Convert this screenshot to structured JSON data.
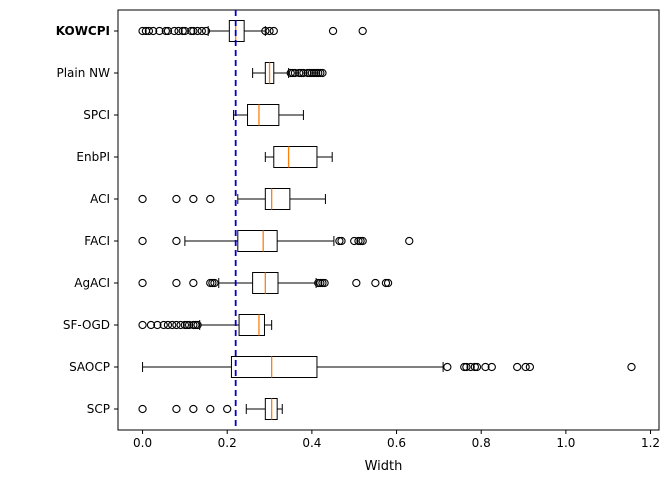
{
  "chart_data": {
    "type": "boxplot",
    "orientation": "horizontal",
    "xlabel": "Width",
    "xlim": [
      -0.058,
      1.22
    ],
    "xticks": [
      0.0,
      0.2,
      0.4,
      0.6,
      0.8,
      1.0,
      1.2
    ],
    "xtick_labels": [
      "0.0",
      "0.2",
      "0.4",
      "0.6",
      "0.8",
      "1.0",
      "1.2"
    ],
    "reference_line": {
      "value": 0.22,
      "color": "#0000cc",
      "style": "dashed"
    },
    "categories_top_to_bottom": [
      {
        "name": "KOWCPI",
        "bold": true,
        "whislo": 0.155,
        "q1": 0.205,
        "med": 0.22,
        "q3": 0.24,
        "whishi": 0.29,
        "outliers": [
          0.0,
          0.008,
          0.015,
          0.025,
          0.04,
          0.055,
          0.06,
          0.075,
          0.085,
          0.095,
          0.1,
          0.115,
          0.12,
          0.13,
          0.14,
          0.15,
          0.29,
          0.3,
          0.31,
          0.45,
          0.52
        ]
      },
      {
        "name": "Plain NW",
        "bold": false,
        "whislo": 0.26,
        "q1": 0.29,
        "med": 0.3,
        "q3": 0.31,
        "whishi": 0.345,
        "outliers": [
          0.35,
          0.355,
          0.36,
          0.37,
          0.375,
          0.38,
          0.39,
          0.395,
          0.4,
          0.405,
          0.41,
          0.415,
          0.42,
          0.425
        ]
      },
      {
        "name": "SPCI",
        "bold": false,
        "whislo": 0.215,
        "q1": 0.248,
        "med": 0.275,
        "q3": 0.322,
        "whishi": 0.38,
        "outliers": []
      },
      {
        "name": "EnbPI",
        "bold": false,
        "whislo": 0.29,
        "q1": 0.31,
        "med": 0.345,
        "q3": 0.412,
        "whishi": 0.448,
        "outliers": []
      },
      {
        "name": "ACI",
        "bold": false,
        "whislo": 0.225,
        "q1": 0.29,
        "med": 0.305,
        "q3": 0.348,
        "whishi": 0.432,
        "outliers": [
          0.0,
          0.08,
          0.12,
          0.16
        ]
      },
      {
        "name": "FACI",
        "bold": false,
        "whislo": 0.1,
        "q1": 0.225,
        "med": 0.285,
        "q3": 0.318,
        "whishi": 0.452,
        "outliers": [
          0.0,
          0.08,
          0.465,
          0.47,
          0.5,
          0.51,
          0.515,
          0.52,
          0.63
        ]
      },
      {
        "name": "AgACI",
        "bold": false,
        "whislo": 0.18,
        "q1": 0.26,
        "med": 0.29,
        "q3": 0.32,
        "whishi": 0.41,
        "outliers": [
          0.0,
          0.08,
          0.12,
          0.16,
          0.165,
          0.17,
          0.415,
          0.42,
          0.425,
          0.43,
          0.505,
          0.55,
          0.575,
          0.58
        ]
      },
      {
        "name": "SF-OGD",
        "bold": false,
        "whislo": 0.135,
        "q1": 0.228,
        "med": 0.275,
        "q3": 0.288,
        "whishi": 0.305,
        "outliers": [
          0.0,
          0.02,
          0.035,
          0.05,
          0.06,
          0.07,
          0.08,
          0.09,
          0.1,
          0.105,
          0.11,
          0.12,
          0.125,
          0.13
        ]
      },
      {
        "name": "SAOCP",
        "bold": false,
        "whislo": 0.0,
        "q1": 0.21,
        "med": 0.305,
        "q3": 0.412,
        "whishi": 0.71,
        "outliers": [
          0.72,
          0.76,
          0.765,
          0.775,
          0.785,
          0.79,
          0.81,
          0.825,
          0.885,
          0.905,
          0.915,
          1.155
        ]
      },
      {
        "name": "SCP",
        "bold": false,
        "whislo": 0.245,
        "q1": 0.29,
        "med": 0.305,
        "q3": 0.318,
        "whishi": 0.33,
        "outliers": [
          0.0,
          0.08,
          0.12,
          0.16,
          0.2
        ]
      }
    ],
    "box_color": "#000000",
    "median_color": "#ff7f0e"
  }
}
